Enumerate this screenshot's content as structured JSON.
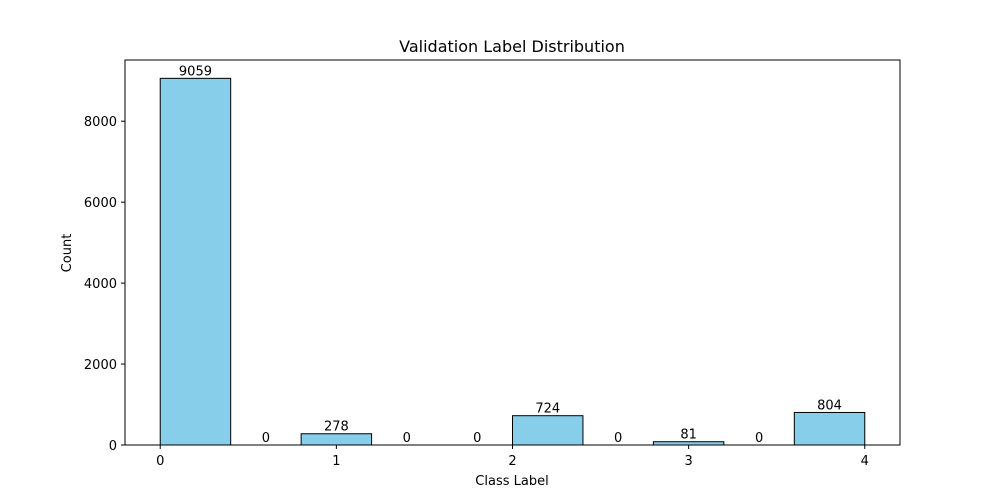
{
  "chart_data": {
    "type": "bar",
    "title": "Validation Label Distribution",
    "xlabel": "Class Label",
    "ylabel": "Count",
    "bins": [
      {
        "start": 0.0,
        "end": 0.4,
        "value": 9059
      },
      {
        "start": 0.4,
        "end": 0.8,
        "value": 0
      },
      {
        "start": 0.8,
        "end": 1.2,
        "value": 278
      },
      {
        "start": 1.2,
        "end": 1.6,
        "value": 0
      },
      {
        "start": 1.6,
        "end": 2.0,
        "value": 0
      },
      {
        "start": 2.0,
        "end": 2.4,
        "value": 724
      },
      {
        "start": 2.4,
        "end": 2.8,
        "value": 0
      },
      {
        "start": 2.8,
        "end": 3.2,
        "value": 81
      },
      {
        "start": 3.2,
        "end": 3.6,
        "value": 0
      },
      {
        "start": 3.6,
        "end": 4.0,
        "value": 804
      }
    ],
    "xticks": [
      0,
      1,
      2,
      3,
      4
    ],
    "yticks": [
      0,
      2000,
      4000,
      6000,
      8000
    ],
    "xlim": [
      -0.2,
      4.2
    ],
    "ylim": [
      0,
      9512
    ],
    "grid": false,
    "bar_color": "#87ceeb",
    "edge_color": "#000000"
  }
}
